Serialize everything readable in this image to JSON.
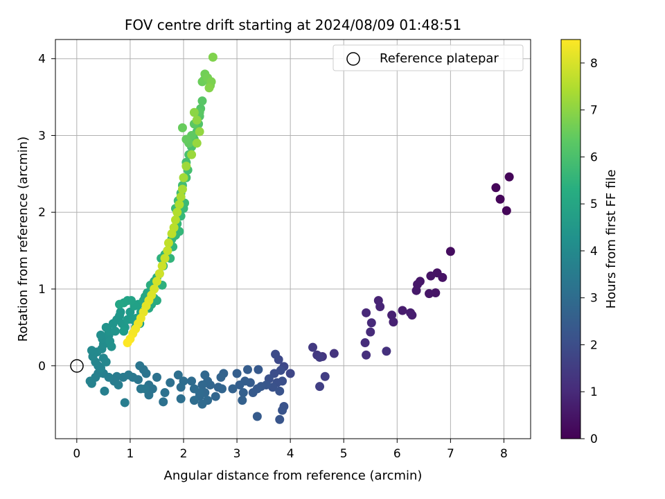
{
  "chart_data": {
    "type": "scatter",
    "title": "FOV centre drift starting at 2024/08/09 01:48:51",
    "xlabel": "Angular distance from reference (arcmin)",
    "ylabel": "Rotation from reference (arcmin)",
    "xlim": [
      -0.4,
      8.5
    ],
    "ylim": [
      -0.95,
      4.25
    ],
    "xticks": [
      0,
      1,
      2,
      3,
      4,
      5,
      6,
      7,
      8
    ],
    "yticks": [
      0,
      1,
      2,
      3,
      4
    ],
    "grid": true,
    "legend": {
      "position": "top-right",
      "entries": [
        "Reference platepar"
      ]
    },
    "reference_point": {
      "x": 0,
      "y": 0
    },
    "colorbar": {
      "label": "Hours from first FF file",
      "colormap": "viridis",
      "range": [
        0,
        8.5
      ],
      "ticks": [
        0,
        1,
        2,
        3,
        4,
        5,
        6,
        7,
        8
      ]
    },
    "points": [
      [
        8.1,
        2.46,
        0.1
      ],
      [
        7.85,
        2.32,
        0.12
      ],
      [
        7.93,
        2.17,
        0.13
      ],
      [
        8.05,
        2.02,
        0.14
      ],
      [
        7.0,
        1.49,
        0.3
      ],
      [
        6.75,
        1.21,
        0.4
      ],
      [
        6.85,
        1.15,
        0.42
      ],
      [
        6.63,
        1.17,
        0.45
      ],
      [
        6.72,
        0.95,
        0.48
      ],
      [
        6.6,
        0.94,
        0.5
      ],
      [
        6.43,
        1.1,
        0.52
      ],
      [
        6.38,
        1.06,
        0.55
      ],
      [
        6.36,
        0.98,
        0.58
      ],
      [
        6.1,
        0.72,
        0.65
      ],
      [
        6.25,
        0.69,
        0.68
      ],
      [
        6.28,
        0.66,
        0.7
      ],
      [
        5.9,
        0.66,
        0.75
      ],
      [
        5.93,
        0.57,
        0.78
      ],
      [
        5.65,
        0.85,
        0.85
      ],
      [
        5.68,
        0.77,
        0.88
      ],
      [
        5.42,
        0.69,
        0.95
      ],
      [
        5.52,
        0.56,
        1.0
      ],
      [
        5.5,
        0.44,
        1.05
      ],
      [
        5.4,
        0.3,
        1.1
      ],
      [
        5.42,
        0.14,
        1.15
      ],
      [
        5.8,
        0.19,
        1.2
      ],
      [
        4.82,
        0.16,
        1.3
      ],
      [
        4.6,
        0.12,
        1.35
      ],
      [
        4.5,
        0.14,
        1.4
      ],
      [
        4.42,
        0.24,
        1.45
      ],
      [
        4.55,
        0.11,
        1.5
      ],
      [
        4.65,
        -0.14,
        1.55
      ],
      [
        4.55,
        -0.27,
        1.6
      ],
      [
        4.0,
        -0.1,
        1.8
      ],
      [
        3.88,
        -0.01,
        1.85
      ],
      [
        3.78,
        0.08,
        1.9
      ],
      [
        3.72,
        0.15,
        1.95
      ],
      [
        3.82,
        -0.06,
        2.0
      ],
      [
        3.7,
        -0.1,
        2.05
      ],
      [
        3.85,
        -0.2,
        2.08
      ],
      [
        3.75,
        -0.22,
        2.1
      ],
      [
        3.6,
        -0.17,
        2.12
      ],
      [
        3.67,
        -0.28,
        2.15
      ],
      [
        3.8,
        -0.33,
        2.18
      ],
      [
        3.88,
        -0.53,
        2.2
      ],
      [
        3.85,
        -0.58,
        2.22
      ],
      [
        3.8,
        -0.7,
        2.25
      ],
      [
        3.55,
        -0.25,
        2.3
      ],
      [
        3.45,
        -0.27,
        2.35
      ],
      [
        3.4,
        -0.05,
        2.38
      ],
      [
        3.38,
        -0.3,
        2.4
      ],
      [
        3.3,
        -0.35,
        2.42
      ],
      [
        3.38,
        -0.66,
        2.45
      ],
      [
        3.25,
        -0.22,
        2.48
      ],
      [
        3.2,
        -0.05,
        2.5
      ],
      [
        3.15,
        -0.2,
        2.52
      ],
      [
        3.05,
        -0.25,
        2.55
      ],
      [
        3.0,
        -0.1,
        2.57
      ],
      [
        3.12,
        -0.35,
        2.6
      ],
      [
        3.1,
        -0.45,
        2.62
      ],
      [
        2.92,
        -0.3,
        2.65
      ],
      [
        2.75,
        -0.1,
        2.67
      ],
      [
        2.7,
        -0.15,
        2.7
      ],
      [
        2.65,
        -0.28,
        2.72
      ],
      [
        2.72,
        -0.3,
        2.74
      ],
      [
        2.6,
        -0.4,
        2.76
      ],
      [
        2.5,
        -0.25,
        2.78
      ],
      [
        2.45,
        -0.2,
        2.8
      ],
      [
        2.4,
        -0.12,
        2.82
      ],
      [
        2.35,
        -0.25,
        2.85
      ],
      [
        2.4,
        -0.35,
        2.87
      ],
      [
        2.3,
        -0.4,
        2.89
      ],
      [
        2.45,
        -0.45,
        2.91
      ],
      [
        2.35,
        -0.5,
        2.93
      ],
      [
        2.3,
        -0.35,
        2.95
      ],
      [
        2.2,
        -0.3,
        2.97
      ],
      [
        2.15,
        -0.2,
        2.99
      ],
      [
        2.2,
        -0.45,
        3.01
      ],
      [
        2.0,
        -0.2,
        3.04
      ],
      [
        1.95,
        -0.28,
        3.06
      ],
      [
        1.9,
        -0.12,
        3.08
      ],
      [
        1.95,
        -0.43,
        3.1
      ],
      [
        1.75,
        -0.22,
        3.13
      ],
      [
        1.65,
        -0.35,
        3.15
      ],
      [
        1.62,
        -0.47,
        3.17
      ],
      [
        1.5,
        -0.15,
        3.2
      ],
      [
        1.42,
        -0.3,
        3.22
      ],
      [
        1.35,
        -0.25,
        3.24
      ],
      [
        1.35,
        -0.38,
        3.26
      ],
      [
        1.3,
        -0.1,
        3.28
      ],
      [
        1.25,
        -0.05,
        3.3
      ],
      [
        1.18,
        0.0,
        3.32
      ],
      [
        1.15,
        -0.18,
        3.35
      ],
      [
        1.2,
        -0.3,
        3.37
      ],
      [
        1.28,
        -0.3,
        3.39
      ],
      [
        1.05,
        -0.15,
        3.42
      ],
      [
        0.97,
        -0.12,
        3.45
      ],
      [
        0.87,
        -0.15,
        3.48
      ],
      [
        0.75,
        -0.14,
        3.52
      ],
      [
        0.7,
        -0.2,
        3.55
      ],
      [
        0.9,
        -0.48,
        3.58
      ],
      [
        0.78,
        -0.25,
        3.6
      ],
      [
        0.6,
        -0.15,
        3.63
      ],
      [
        0.5,
        -0.1,
        3.66
      ],
      [
        0.52,
        -0.33,
        3.68
      ],
      [
        0.4,
        -0.1,
        3.7
      ],
      [
        0.35,
        -0.15,
        3.73
      ],
      [
        0.25,
        -0.2,
        3.76
      ],
      [
        0.28,
        -0.23,
        3.78
      ],
      [
        0.4,
        0.0,
        3.82
      ],
      [
        0.45,
        -0.03,
        3.85
      ],
      [
        0.35,
        0.05,
        3.88
      ],
      [
        0.5,
        0.1,
        3.91
      ],
      [
        0.55,
        0.05,
        3.94
      ],
      [
        0.3,
        0.12,
        3.97
      ],
      [
        0.38,
        0.18,
        4.0
      ],
      [
        0.28,
        0.2,
        4.03
      ],
      [
        0.47,
        0.22,
        4.06
      ],
      [
        0.5,
        0.28,
        4.1
      ],
      [
        0.55,
        0.3,
        4.13
      ],
      [
        0.48,
        0.35,
        4.16
      ],
      [
        0.45,
        0.4,
        4.19
      ],
      [
        0.6,
        0.4,
        4.22
      ],
      [
        0.62,
        0.32,
        4.25
      ],
      [
        0.65,
        0.25,
        4.28
      ],
      [
        0.6,
        0.45,
        4.31
      ],
      [
        0.55,
        0.5,
        4.34
      ],
      [
        0.72,
        0.45,
        4.37
      ],
      [
        0.68,
        0.55,
        4.4
      ],
      [
        0.75,
        0.6,
        4.43
      ],
      [
        0.8,
        0.65,
        4.46
      ],
      [
        0.85,
        0.55,
        4.49
      ],
      [
        0.82,
        0.7,
        4.52
      ],
      [
        0.9,
        0.5,
        4.55
      ],
      [
        0.95,
        0.6,
        4.58
      ],
      [
        1.0,
        0.7,
        4.61
      ],
      [
        1.05,
        0.6,
        4.64
      ],
      [
        0.88,
        0.45,
        4.67
      ],
      [
        1.1,
        0.5,
        4.7
      ],
      [
        1.12,
        0.62,
        4.73
      ],
      [
        1.18,
        0.55,
        4.76
      ],
      [
        1.2,
        0.7,
        4.79
      ],
      [
        1.15,
        0.8,
        4.82
      ],
      [
        1.08,
        0.78,
        4.85
      ],
      [
        1.02,
        0.85,
        4.88
      ],
      [
        0.95,
        0.85,
        4.91
      ],
      [
        0.88,
        0.82,
        4.94
      ],
      [
        0.8,
        0.8,
        4.97
      ],
      [
        1.25,
        0.85,
        5.0
      ],
      [
        1.28,
        0.9,
        5.03
      ],
      [
        1.32,
        0.95,
        5.06
      ],
      [
        1.35,
        0.75,
        5.09
      ],
      [
        1.4,
        0.8,
        5.12
      ],
      [
        1.45,
        0.88,
        5.15
      ],
      [
        1.5,
        0.85,
        5.18
      ],
      [
        1.42,
        1.0,
        5.21
      ],
      [
        1.38,
        1.05,
        5.24
      ],
      [
        1.45,
        1.1,
        5.27
      ],
      [
        1.5,
        1.15,
        5.3
      ],
      [
        1.55,
        1.2,
        5.33
      ],
      [
        1.6,
        1.05,
        5.36
      ],
      [
        1.62,
        1.3,
        5.4
      ],
      [
        1.58,
        1.4,
        5.43
      ],
      [
        1.65,
        1.45,
        5.46
      ],
      [
        1.7,
        1.5,
        5.49
      ],
      [
        1.75,
        1.4,
        5.52
      ],
      [
        1.8,
        1.55,
        5.55
      ],
      [
        1.78,
        1.65,
        5.58
      ],
      [
        1.85,
        1.7,
        5.61
      ],
      [
        1.92,
        1.75,
        5.64
      ],
      [
        1.88,
        1.85,
        5.67
      ],
      [
        1.95,
        1.95,
        5.7
      ],
      [
        2.0,
        2.05,
        5.73
      ],
      [
        2.02,
        2.12,
        5.76
      ],
      [
        1.85,
        2.05,
        5.79
      ],
      [
        1.9,
        2.15,
        5.82
      ],
      [
        1.95,
        2.25,
        5.85
      ],
      [
        1.98,
        2.35,
        5.88
      ],
      [
        2.05,
        2.45,
        5.91
      ],
      [
        2.08,
        2.55,
        5.94
      ],
      [
        2.05,
        2.65,
        5.97
      ],
      [
        2.1,
        2.75,
        6.0
      ],
      [
        2.15,
        2.85,
        6.03
      ],
      [
        2.2,
        2.95,
        6.06
      ],
      [
        2.25,
        3.05,
        6.1
      ],
      [
        2.28,
        3.15,
        6.13
      ],
      [
        2.3,
        3.25,
        6.16
      ],
      [
        2.32,
        3.35,
        6.2
      ],
      [
        2.35,
        3.45,
        6.24
      ],
      [
        2.3,
        3.3,
        6.28
      ],
      [
        2.2,
        3.15,
        6.32
      ],
      [
        2.15,
        3.0,
        6.36
      ],
      [
        2.1,
        2.9,
        6.4
      ],
      [
        2.05,
        2.95,
        6.44
      ],
      [
        1.98,
        3.1,
        6.5
      ],
      [
        2.35,
        3.7,
        6.55
      ],
      [
        2.38,
        3.72,
        6.6
      ],
      [
        2.4,
        3.8,
        6.65
      ],
      [
        2.45,
        3.75,
        6.7
      ],
      [
        2.5,
        3.65,
        6.75
      ],
      [
        2.52,
        3.7,
        6.8
      ],
      [
        2.55,
        4.02,
        6.85
      ],
      [
        2.48,
        3.62,
        6.9
      ],
      [
        2.2,
        3.3,
        7.0
      ],
      [
        2.25,
        3.2,
        7.05
      ],
      [
        2.3,
        3.05,
        7.1
      ],
      [
        2.25,
        2.9,
        7.15
      ],
      [
        2.15,
        2.75,
        7.2
      ],
      [
        2.05,
        2.6,
        7.25
      ],
      [
        2.0,
        2.45,
        7.3
      ],
      [
        1.98,
        2.3,
        7.35
      ],
      [
        1.95,
        2.2,
        7.4
      ],
      [
        1.92,
        2.1,
        7.45
      ],
      [
        1.88,
        2.0,
        7.5
      ],
      [
        1.85,
        1.9,
        7.55
      ],
      [
        1.82,
        1.8,
        7.6
      ],
      [
        1.78,
        1.72,
        7.65
      ],
      [
        1.72,
        1.6,
        7.7
      ],
      [
        1.7,
        1.5,
        7.75
      ],
      [
        1.65,
        1.4,
        7.8
      ],
      [
        1.6,
        1.3,
        7.85
      ],
      [
        1.55,
        1.2,
        7.9
      ],
      [
        1.5,
        1.1,
        7.95
      ],
      [
        1.45,
        1.0,
        8.0
      ],
      [
        1.4,
        0.92,
        8.05
      ],
      [
        1.35,
        0.85,
        8.1
      ],
      [
        1.3,
        0.78,
        8.15
      ],
      [
        1.25,
        0.7,
        8.2
      ],
      [
        1.2,
        0.62,
        8.25
      ],
      [
        1.15,
        0.55,
        8.3
      ],
      [
        1.1,
        0.48,
        8.35
      ],
      [
        1.05,
        0.42,
        8.4
      ],
      [
        1.0,
        0.35,
        8.45
      ],
      [
        0.95,
        0.3,
        8.5
      ]
    ]
  }
}
